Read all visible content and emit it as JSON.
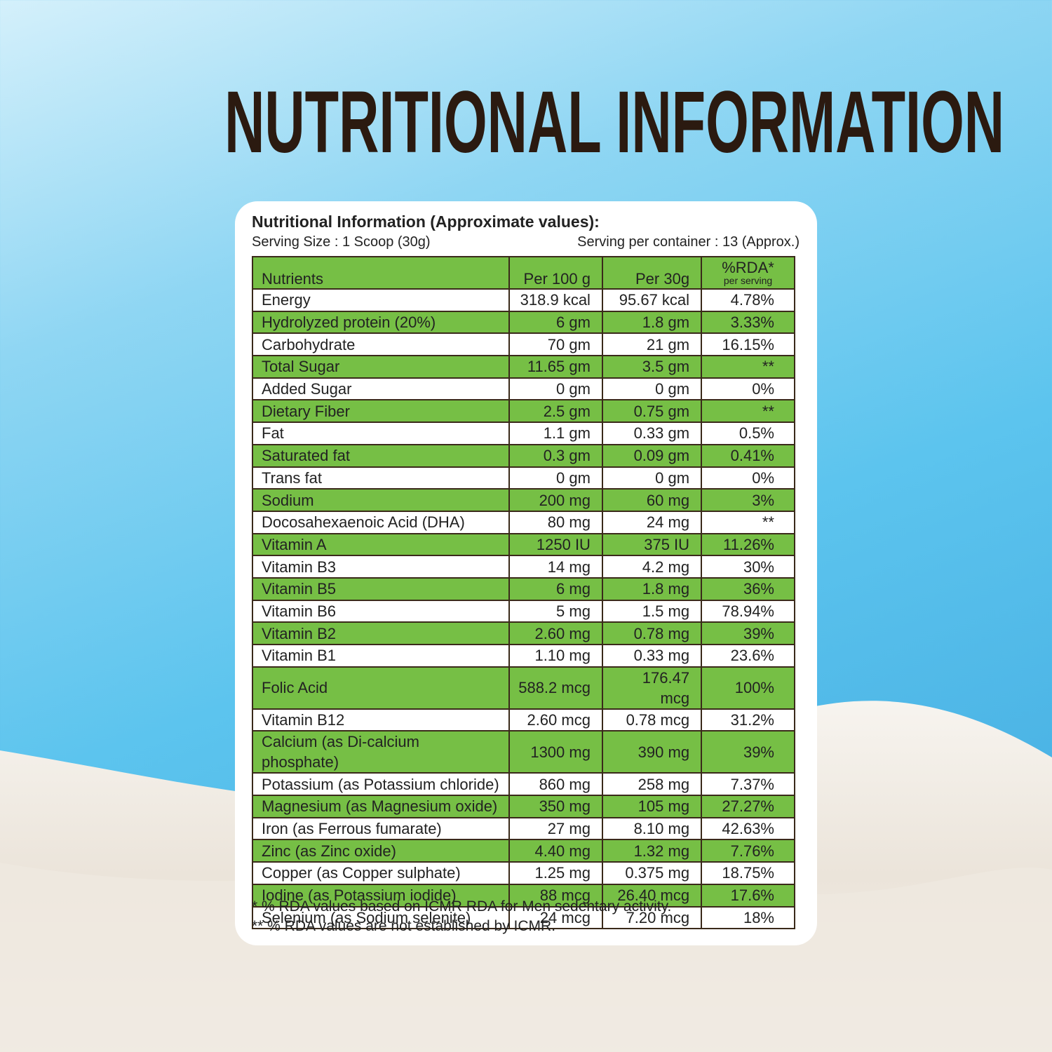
{
  "header": {
    "title": "NUTRITIONAL INFORMATION"
  },
  "card": {
    "heading": "Nutritional Information (Approximate values):",
    "serving_size": "Serving Size : 1 Scoop (30g)",
    "servings_per_container": "Serving per container : 13 (Approx.)",
    "table": {
      "columns": [
        "Nutrients",
        "Per 100 g",
        "Per 30g",
        "%RDA*"
      ],
      "rda_note": "per serving",
      "rows": [
        [
          "Energy",
          "318.9 kcal",
          "95.67 kcal",
          "4.78%"
        ],
        [
          "Hydrolyzed protein (20%)",
          "6 gm",
          "1.8 gm",
          "3.33%"
        ],
        [
          "Carbohydrate",
          "70 gm",
          "21 gm",
          "16.15%"
        ],
        [
          "Total Sugar",
          "11.65 gm",
          "3.5 gm",
          "**"
        ],
        [
          "Added Sugar",
          "0 gm",
          "0 gm",
          "0%"
        ],
        [
          "Dietary Fiber",
          "2.5 gm",
          "0.75 gm",
          "**"
        ],
        [
          "Fat",
          "1.1 gm",
          "0.33 gm",
          "0.5%"
        ],
        [
          "Saturated fat",
          "0.3 gm",
          "0.09 gm",
          "0.41%"
        ],
        [
          "Trans fat",
          "0 gm",
          "0 gm",
          "0%"
        ],
        [
          "Sodium",
          "200 mg",
          "60 mg",
          "3%"
        ],
        [
          "Docosahexaenoic Acid (DHA)",
          "80 mg",
          "24 mg",
          "**"
        ],
        [
          "Vitamin A",
          "1250 IU",
          "375 IU",
          "11.26%"
        ],
        [
          "Vitamin B3",
          "14 mg",
          "4.2 mg",
          "30%"
        ],
        [
          "Vitamin B5",
          "6 mg",
          "1.8 mg",
          "36%"
        ],
        [
          "Vitamin B6",
          "5 mg",
          "1.5 mg",
          "78.94%"
        ],
        [
          "Vitamin B2",
          "2.60 mg",
          "0.78 mg",
          "39%"
        ],
        [
          "Vitamin B1",
          "1.10 mg",
          "0.33 mg",
          "23.6%"
        ],
        [
          "Folic Acid",
          "588.2 mcg",
          "176.47 mcg",
          "100%"
        ],
        [
          "Vitamin B12",
          "2.60 mcg",
          "0.78 mcg",
          "31.2%"
        ],
        [
          "Calcium (as Di-calcium phosphate)",
          "1300 mg",
          "390 mg",
          "39%"
        ],
        [
          "Potassium (as Potassium chloride)",
          "860 mg",
          "258 mg",
          "7.37%"
        ],
        [
          "Magnesium (as Magnesium oxide)",
          "350 mg",
          "105 mg",
          "27.27%"
        ],
        [
          "Iron (as Ferrous fumarate)",
          "27 mg",
          "8.10 mg",
          "42.63%"
        ],
        [
          "Zinc (as Zinc oxide)",
          "4.40 mg",
          "1.32 mg",
          "7.76%"
        ],
        [
          "Copper (as Copper sulphate)",
          "1.25 mg",
          "0.375 mg",
          "18.75%"
        ],
        [
          "Iodine (as Potassium iodide)",
          "88 mcg",
          "26.40 mcg",
          "17.6%"
        ],
        [
          "Selenium (as Sodium selenite)",
          "24 mcg",
          "7.20 mcg",
          "18%"
        ]
      ]
    },
    "footnotes": [
      "* % RDA values based on ICMR RDA for Men sedentary  activity.",
      "** % RDA values are not established by ICMR."
    ]
  }
}
